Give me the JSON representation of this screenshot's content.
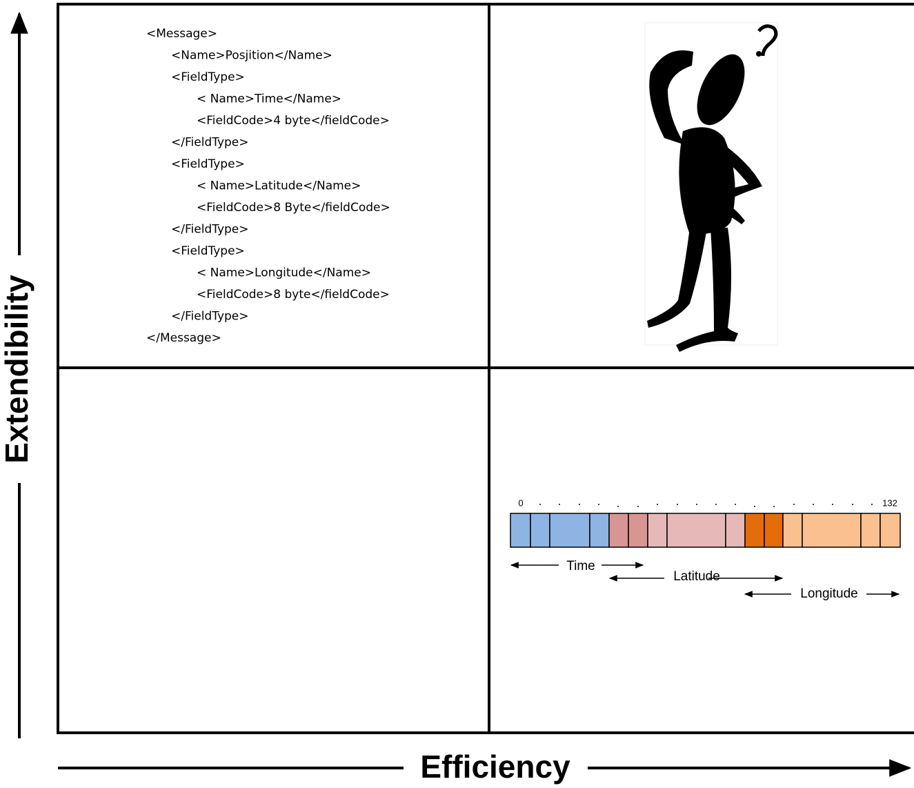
{
  "axes": {
    "y_label": "Extendibility",
    "x_label": "Efficiency"
  },
  "xml": {
    "lines": [
      "<Message>",
      "<Name>Posjition</Name>",
      "<FieldType>",
      "< Name>Time</Name>",
      "<FieldCode>4 byte</fieldCode>",
      "</FieldType>",
      "<FieldType>",
      "< Name>Latitude</Name>",
      "<FieldCode>8 Byte</fieldCode>",
      "</FieldType>",
      "<FieldType>",
      "< Name>Longitude</Name>",
      "<FieldCode>8 byte</fieldCode>",
      "</FieldType>",
      "</Message>"
    ]
  },
  "bitfield": {
    "start": "0",
    "end": "132",
    "fields": [
      "Time",
      "Latitude",
      "Longitude"
    ]
  }
}
